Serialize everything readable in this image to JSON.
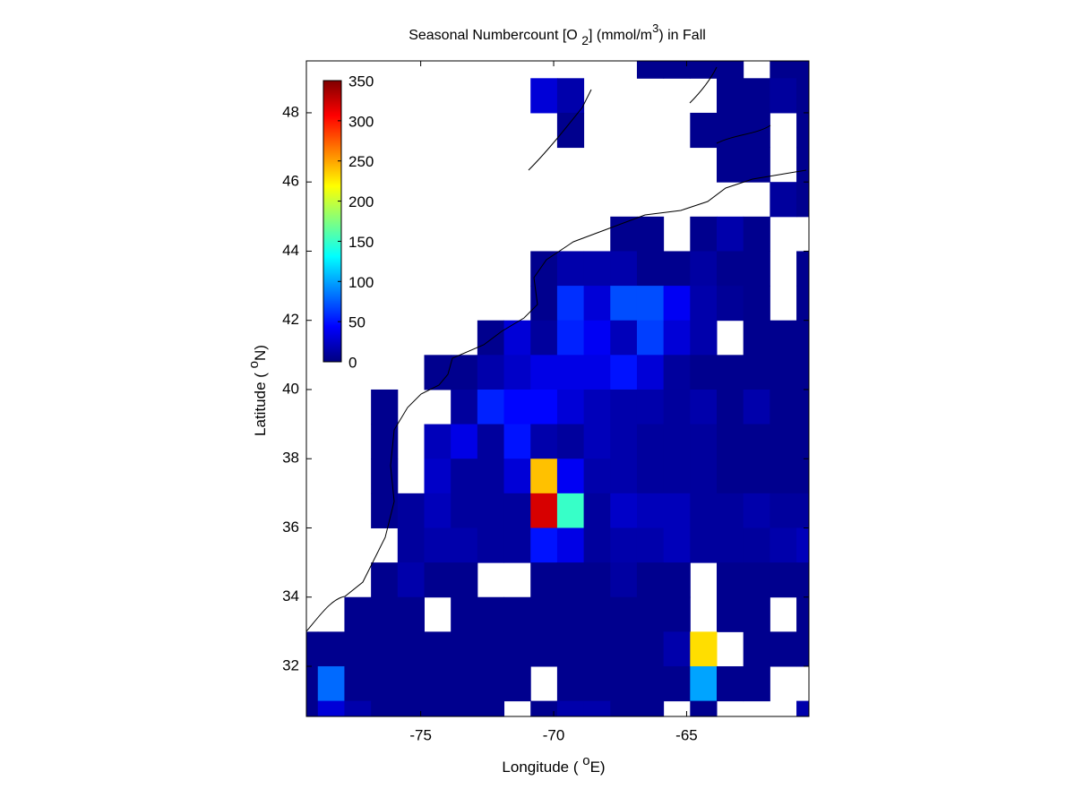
{
  "chart_data": {
    "type": "heatmap",
    "title": [
      "Seasonal Numbercount [O ",
      "2",
      "] (mmol/m",
      "3",
      ") in  Fall"
    ],
    "xlabel": [
      "Longitude ( ",
      "o",
      "E)"
    ],
    "ylabel": [
      "Latitude ( ",
      "o",
      "N)"
    ],
    "x": [
      -79.37,
      -78.37,
      -77.37,
      -76.37,
      -75.37,
      -74.37,
      -73.37,
      -72.37,
      -71.37,
      -70.37,
      -69.37,
      -68.37,
      -67.37,
      -66.37,
      -65.37,
      -64.37,
      -63.37,
      -62.37,
      -61.37,
      -60.37
    ],
    "y": [
      49.5,
      48.5,
      47.5,
      46.5,
      45.5,
      44.5,
      43.5,
      42.5,
      41.5,
      40.5,
      39.5,
      38.5,
      37.5,
      36.5,
      35.5,
      34.5,
      33.5,
      32.5,
      31.5,
      30.5
    ],
    "values": [
      [
        null,
        null,
        null,
        null,
        null,
        null,
        null,
        null,
        null,
        null,
        null,
        null,
        null,
        5,
        5,
        5,
        5,
        null,
        5,
        5
      ],
      [
        null,
        null,
        null,
        null,
        null,
        null,
        null,
        null,
        null,
        30,
        15,
        null,
        null,
        null,
        null,
        null,
        5,
        5,
        10,
        5
      ],
      [
        null,
        null,
        null,
        null,
        null,
        null,
        null,
        null,
        null,
        null,
        5,
        null,
        null,
        null,
        null,
        5,
        5,
        5,
        null,
        5
      ],
      [
        null,
        null,
        null,
        null,
        null,
        null,
        null,
        null,
        null,
        null,
        null,
        null,
        null,
        null,
        null,
        null,
        5,
        5,
        null,
        5
      ],
      [
        null,
        null,
        null,
        null,
        null,
        null,
        null,
        null,
        null,
        null,
        null,
        null,
        null,
        null,
        null,
        null,
        null,
        null,
        10,
        5
      ],
      [
        null,
        null,
        null,
        null,
        null,
        null,
        null,
        null,
        null,
        null,
        null,
        null,
        5,
        5,
        null,
        5,
        15,
        5,
        null,
        null
      ],
      [
        null,
        null,
        null,
        null,
        null,
        null,
        null,
        null,
        null,
        5,
        15,
        15,
        15,
        5,
        5,
        12,
        5,
        5,
        null,
        5
      ],
      [
        null,
        null,
        null,
        null,
        null,
        null,
        null,
        null,
        null,
        5,
        60,
        30,
        70,
        70,
        40,
        15,
        8,
        5,
        null,
        5
      ],
      [
        null,
        null,
        null,
        null,
        null,
        null,
        null,
        5,
        30,
        10,
        55,
        40,
        20,
        65,
        30,
        15,
        null,
        5,
        5,
        5
      ],
      [
        null,
        null,
        null,
        null,
        null,
        5,
        5,
        15,
        25,
        35,
        35,
        35,
        50,
        30,
        10,
        5,
        5,
        5,
        5,
        5
      ],
      [
        null,
        null,
        null,
        5,
        null,
        null,
        10,
        55,
        45,
        45,
        30,
        20,
        15,
        15,
        10,
        15,
        5,
        15,
        5,
        5
      ],
      [
        null,
        null,
        null,
        5,
        null,
        20,
        35,
        10,
        50,
        15,
        10,
        20,
        15,
        10,
        10,
        10,
        5,
        5,
        5,
        5
      ],
      [
        null,
        null,
        null,
        5,
        null,
        25,
        10,
        10,
        30,
        240,
        40,
        15,
        15,
        10,
        10,
        10,
        5,
        5,
        5,
        5
      ],
      [
        null,
        null,
        null,
        5,
        10,
        20,
        10,
        10,
        10,
        320,
        150,
        10,
        25,
        20,
        20,
        10,
        10,
        15,
        10,
        10
      ],
      [
        null,
        null,
        null,
        null,
        10,
        15,
        15,
        10,
        10,
        50,
        35,
        10,
        15,
        15,
        20,
        10,
        10,
        10,
        15,
        20
      ],
      [
        null,
        null,
        null,
        5,
        15,
        5,
        5,
        null,
        null,
        5,
        5,
        5,
        12,
        5,
        5,
        null,
        5,
        5,
        5,
        5
      ],
      [
        null,
        null,
        5,
        5,
        5,
        null,
        5,
        5,
        5,
        5,
        5,
        5,
        5,
        5,
        5,
        null,
        5,
        5,
        null,
        5
      ],
      [
        5,
        5,
        5,
        5,
        5,
        5,
        5,
        5,
        5,
        5,
        5,
        5,
        5,
        5,
        15,
        230,
        null,
        5,
        5,
        5
      ],
      [
        5,
        80,
        5,
        5,
        5,
        5,
        5,
        5,
        5,
        null,
        5,
        5,
        5,
        5,
        5,
        100,
        5,
        5,
        null,
        null
      ],
      [
        5,
        30,
        15,
        5,
        5,
        5,
        5,
        5,
        null,
        5,
        15,
        15,
        5,
        5,
        null,
        5,
        null,
        null,
        null,
        15
      ]
    ],
    "xlim": [
      -79.3,
      -60.4
    ],
    "ylim": [
      30.55,
      49.5
    ],
    "xticks": [
      -75,
      -70,
      -65
    ],
    "yticks": [
      32,
      34,
      36,
      38,
      40,
      42,
      44,
      46,
      48
    ],
    "colormap": "jet",
    "clim": [
      0,
      350
    ],
    "cticks": [
      0,
      50,
      100,
      150,
      200,
      250,
      300,
      350
    ]
  }
}
